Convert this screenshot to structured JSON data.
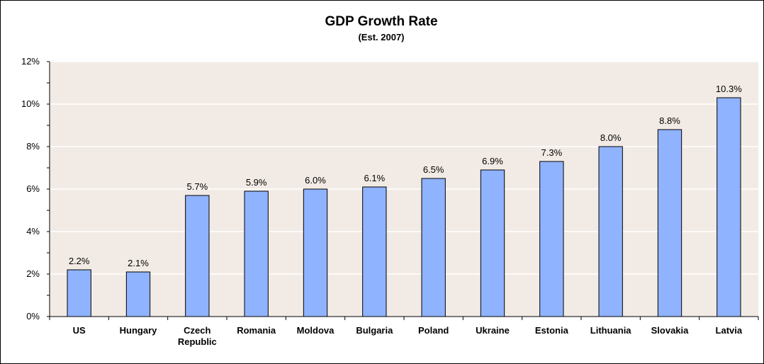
{
  "chart_data": {
    "type": "bar",
    "title": "GDP Growth Rate",
    "subtitle": "(Est. 2007)",
    "xlabel": "",
    "ylabel": "",
    "categories": [
      "US",
      "Hungary",
      "Czech Republic",
      "Romania",
      "Moldova",
      "Bulgaria",
      "Poland",
      "Ukraine",
      "Estonia",
      "Lithuania",
      "Slovakia",
      "Latvia"
    ],
    "category_lines": [
      [
        "US"
      ],
      [
        "Hungary"
      ],
      [
        "Czech",
        "Republic"
      ],
      [
        "Romania"
      ],
      [
        "Moldova"
      ],
      [
        "Bulgaria"
      ],
      [
        "Poland"
      ],
      [
        "Ukraine"
      ],
      [
        "Estonia"
      ],
      [
        "Lithuania"
      ],
      [
        "Slovakia"
      ],
      [
        "Latvia"
      ]
    ],
    "values": [
      2.2,
      2.1,
      5.7,
      5.9,
      6.0,
      6.1,
      6.5,
      6.9,
      7.3,
      8.0,
      8.8,
      10.3
    ],
    "value_labels": [
      "2.2%",
      "2.1%",
      "5.7%",
      "5.9%",
      "6.0%",
      "6.1%",
      "6.5%",
      "6.9%",
      "7.3%",
      "8.0%",
      "8.8%",
      "10.3%"
    ],
    "ylim": [
      0,
      12
    ],
    "yticks": [
      0,
      2,
      4,
      6,
      8,
      10,
      12
    ],
    "ytick_labels": [
      "0%",
      "2%",
      "4%",
      "6%",
      "8%",
      "10%",
      "12%"
    ],
    "grid": true,
    "legend": "none",
    "colors": {
      "bar": "#8FB3FF",
      "bar_border": "#000000",
      "plot_background": "#F2EBE5",
      "grid": "#FFFFFF"
    }
  }
}
